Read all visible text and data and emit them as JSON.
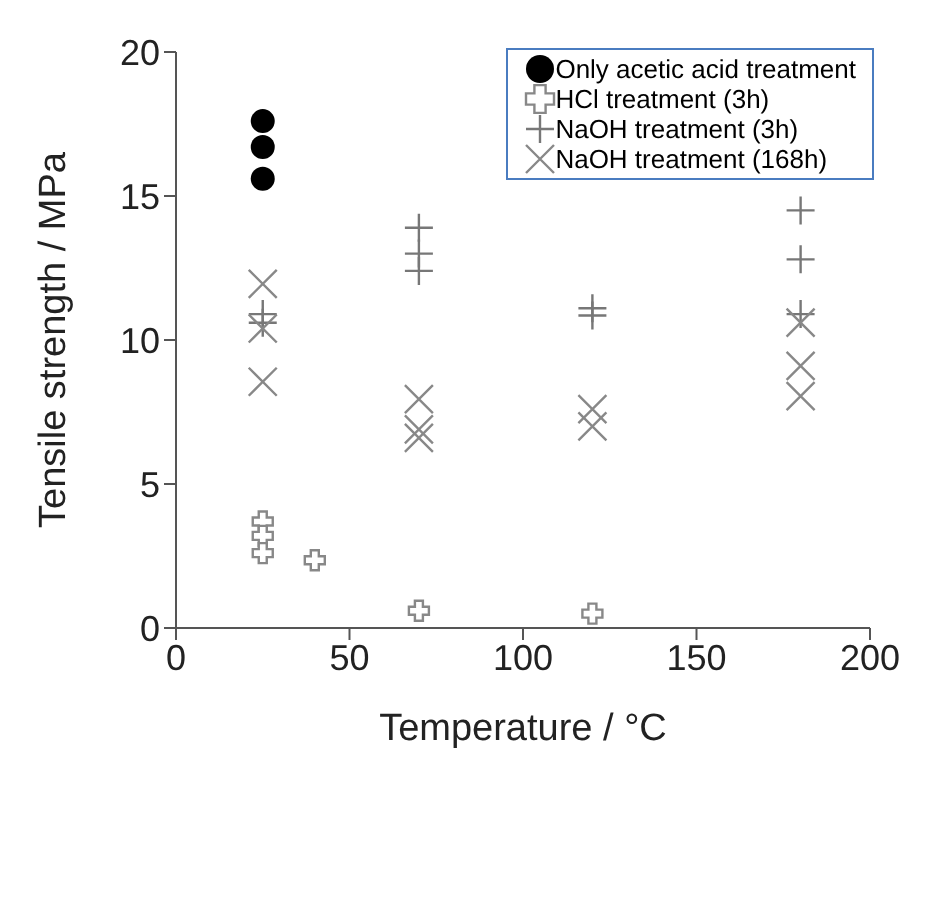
{
  "chart_data": {
    "type": "scatter",
    "xlabel": "Temperature / °C",
    "ylabel": "Tensile strength / MPa",
    "xlim": [
      0,
      200
    ],
    "xticks": [
      0,
      50,
      100,
      150,
      200
    ],
    "ylim": [
      0,
      20
    ],
    "yticks": [
      0,
      5,
      10,
      15,
      20
    ],
    "grid": false,
    "legend": "top right",
    "series": [
      {
        "name": "Only acetic acid treatment",
        "color": "#000000",
        "marker": "circle",
        "x": [
          25,
          25,
          25
        ],
        "values": [
          17.6,
          16.7,
          15.6
        ]
      },
      {
        "name": "HCl treatment (3h)",
        "color": "#888888",
        "marker": "cross",
        "x": [
          25,
          25,
          25,
          40,
          70,
          120
        ],
        "values": [
          3.7,
          3.2,
          2.6,
          2.35,
          0.6,
          0.5
        ]
      },
      {
        "name": "NaOH treatment (3h)",
        "color": "#777777",
        "marker": "cross",
        "x": [
          25,
          25,
          70,
          70,
          70,
          120,
          120,
          180,
          180,
          180
        ],
        "values": [
          10.9,
          10.6,
          13.9,
          13.0,
          12.4,
          11.1,
          10.85,
          14.5,
          12.8,
          10.9
        ]
      },
      {
        "name": "NaOH treatment (168h)",
        "color": "#888888",
        "marker": "cross",
        "x": [
          25,
          25,
          25,
          70,
          70,
          70,
          120,
          120,
          180,
          180,
          180
        ],
        "values": [
          11.95,
          10.4,
          8.55,
          7.95,
          6.9,
          6.6,
          7.6,
          7.0,
          10.6,
          9.1,
          8.05
        ]
      }
    ]
  }
}
